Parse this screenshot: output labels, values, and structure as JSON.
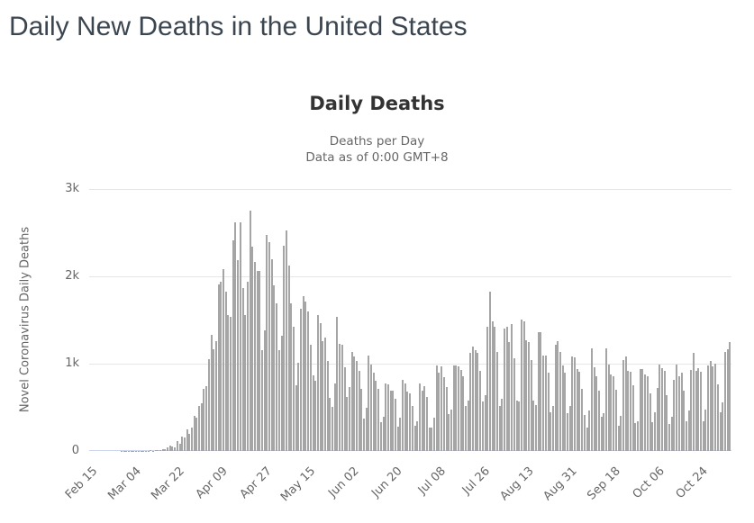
{
  "page": {
    "title": "Daily New Deaths in the United States"
  },
  "chart_data": {
    "type": "bar",
    "title": "Daily Deaths",
    "subtitle_lines": [
      "Deaths per Day",
      "Data as of 0:00 GMT+8"
    ],
    "ylabel": "Novel Coronavirus Daily Deaths",
    "xlabel": "",
    "series_name": "Daily Deaths",
    "ylim": [
      0,
      3000
    ],
    "ytick_values": [
      0,
      1000,
      2000,
      3000
    ],
    "ytick_labels": [
      "0",
      "1k",
      "2k",
      "3k"
    ],
    "xtick_labels": [
      "Feb 15",
      "Mar 04",
      "Mar 22",
      "Apr 09",
      "Apr 27",
      "May 15",
      "Jun 02",
      "Jun 20",
      "Jul 08",
      "Jul 26",
      "Aug 13",
      "Aug 31",
      "Sep 18",
      "Oct 06",
      "Oct 24"
    ],
    "xtick_interval": 18,
    "x_start_label": "Feb 15",
    "grid": true,
    "legend": "none",
    "bar_color": "#a5a5a5",
    "grid_color": "#e6e6e6",
    "axis_line_color": "#ccd6eb",
    "title_color": "#333333",
    "muted_text_color": "#666666",
    "page_title_color": "#3b4651",
    "values": [
      0,
      0,
      0,
      0,
      0,
      0,
      0,
      0,
      0,
      0,
      0,
      0,
      0,
      1,
      1,
      1,
      2,
      4,
      3,
      2,
      4,
      3,
      5,
      3,
      5,
      8,
      4,
      9,
      11,
      11,
      18,
      23,
      41,
      57,
      49,
      46,
      111,
      80,
      164,
      155,
      247,
      196,
      268,
      400,
      386,
      520,
      550,
      716,
      746,
      1049,
      1330,
      1164,
      1255,
      1906,
      1940,
      2087,
      1830,
      1557,
      1541,
      2408,
      2621,
      2181,
      2614,
      1867,
      1561,
      1939,
      2752,
      2341,
      2160,
      2065,
      2065,
      1150,
      1384,
      2470,
      2390,
      2201,
      1898,
      1691,
      1154,
      1324,
      2350,
      2528,
      2129,
      1687,
      1422,
      750,
      1008,
      1630,
      1772,
      1715,
      1595,
      1218,
      865,
      808,
      1552,
      1461,
      1263,
      1304,
      1036,
      605,
      505,
      774,
      1535,
      1223,
      1212,
      960,
      621,
      730,
      1134,
      1083,
      1031,
      921,
      709,
      373,
      495,
      1093,
      993,
      902,
      803,
      710,
      329,
      389,
      773,
      767,
      688,
      693,
      595,
      280,
      378,
      818,
      769,
      680,
      655,
      520,
      290,
      345,
      769,
      686,
      743,
      614,
      268,
      264,
      381,
      982,
      898,
      966,
      849,
      737,
      421,
      477,
      983,
      977,
      973,
      929,
      857,
      516,
      576,
      1126,
      1195,
      1158,
      1123,
      916,
      569,
      636,
      1420,
      1830,
      1480,
      1420,
      1133,
      515,
      595,
      1398,
      1423,
      1243,
      1450,
      1064,
      577,
      565,
      1504,
      1486,
      1272,
      1251,
      1043,
      576,
      530,
      1357,
      1356,
      1090,
      1094,
      901,
      447,
      511,
      1212,
      1253,
      1130,
      983,
      898,
      430,
      518,
      1083,
      1077,
      941,
      908,
      709,
      416,
      267,
      463,
      1180,
      961,
      855,
      690,
      388,
      438,
      1179,
      985,
      880,
      856,
      700,
      288,
      403,
      1039,
      1086,
      921,
      907,
      749,
      317,
      344,
      935,
      942,
      880,
      852,
      662,
      325,
      448,
      720,
      990,
      950,
      917,
      642,
      309,
      388,
      818,
      987,
      860,
      900,
      688,
      337,
      465,
      927,
      1125,
      916,
      950,
      906,
      340,
      477,
      983,
      1030,
      971,
      1004,
      768,
      445,
      556,
      1130,
      1160,
      1250
    ]
  }
}
